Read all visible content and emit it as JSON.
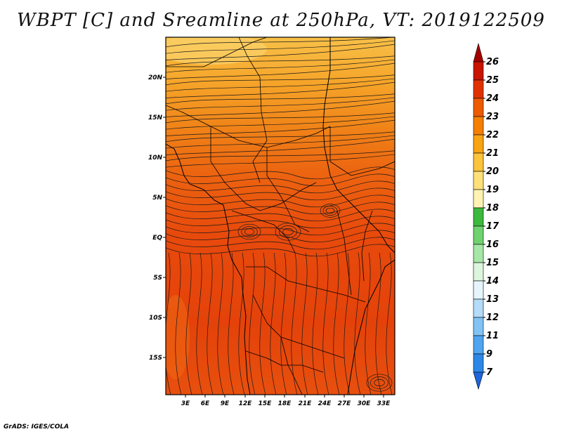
{
  "title": "WBPT [C] and Sreamline at 250hPa, VT: 2019122509",
  "footer": "GrADS: IGES/COLA",
  "map": {
    "lat_labels": [
      "20N",
      "15N",
      "10N",
      "5N",
      "EQ",
      "5S",
      "10S",
      "15S"
    ],
    "lon_labels": [
      "3E",
      "6E",
      "9E",
      "12E",
      "15E",
      "18E",
      "21E",
      "24E",
      "27E",
      "30E",
      "33E"
    ]
  },
  "colorbar": {
    "labels": [
      "26",
      "25",
      "24",
      "23",
      "22",
      "21",
      "20",
      "19",
      "18",
      "17",
      "16",
      "15",
      "14",
      "13",
      "12",
      "11",
      "9",
      "7"
    ],
    "colors": [
      "#a50000",
      "#c81400",
      "#e03200",
      "#ee5a00",
      "#f57f00",
      "#f9a414",
      "#fcc33c",
      "#fde07a",
      "#fff3b4",
      "#3cb93c",
      "#6ed26e",
      "#a6e6a6",
      "#dcf5dc",
      "#e6f5fc",
      "#b4dcf8",
      "#82c3f5",
      "#50a5f0",
      "#2d87e6",
      "#1e64dc"
    ]
  }
}
